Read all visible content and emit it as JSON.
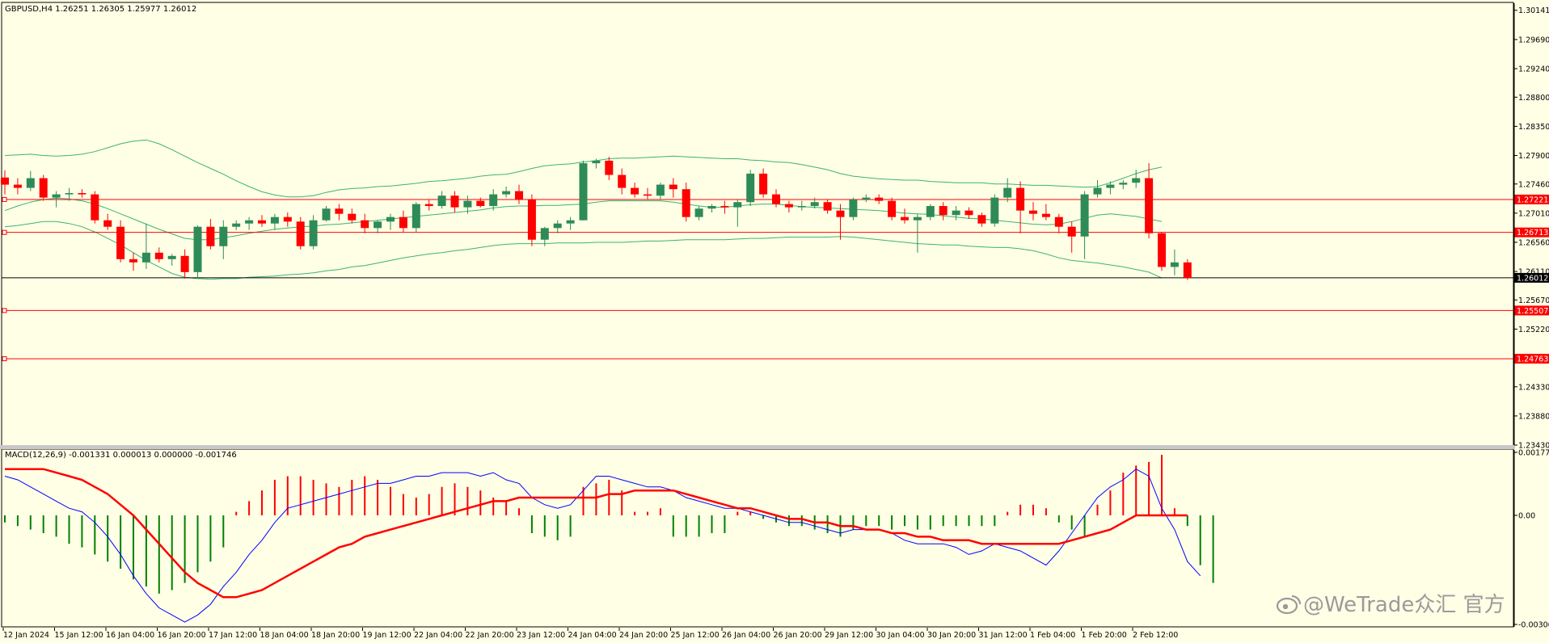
{
  "window": {
    "header": "GBPUSD,H4  1.26251 1.26305 1.25977 1.26012",
    "macd_header": "MACD(12,26,9) -0.001331 0.000013 0.000000 -0.001746",
    "watermark": "@WeTrade众汇 官方"
  },
  "price_axis": {
    "labels": [
      "1.30141",
      "1.29690",
      "1.29240",
      "1.28800",
      "1.28350",
      "1.27900",
      "1.27460",
      "1.27010",
      "1.26560",
      "1.26110",
      "1.25670",
      "1.25220",
      "1.24330",
      "1.23880",
      "1.23430"
    ],
    "values": [
      1.30141,
      1.2969,
      1.2924,
      1.288,
      1.2835,
      1.279,
      1.2746,
      1.2701,
      1.2656,
      1.2611,
      1.2567,
      1.2522,
      1.2433,
      1.2388,
      1.2343
    ],
    "range": [
      1.2343,
      1.3025
    ]
  },
  "levels": [
    {
      "label": "1.27221",
      "value": 1.27221,
      "color": "#ff0000"
    },
    {
      "label": "1.26713",
      "value": 1.26713,
      "color": "#ff0000"
    },
    {
      "label": "1.25507",
      "value": 1.25507,
      "color": "#ff0000"
    },
    {
      "label": "1.24763",
      "value": 1.24763,
      "color": "#ff0000"
    },
    {
      "label": "1.26012",
      "value": 1.26012,
      "color": "#000000",
      "current": true
    }
  ],
  "time_axis": [
    "12 Jan 2024",
    "15 Jan 12:00",
    "16 Jan 04:00",
    "16 Jan 20:00",
    "17 Jan 12:00",
    "18 Jan 04:00",
    "18 Jan 20:00",
    "19 Jan 12:00",
    "22 Jan 04:00",
    "22 Jan 20:00",
    "23 Jan 12:00",
    "24 Jan 04:00",
    "24 Jan 20:00",
    "25 Jan 12:00",
    "26 Jan 04:00",
    "26 Jan 20:00",
    "29 Jan 12:00",
    "30 Jan 04:00",
    "30 Jan 20:00",
    "31 Jan 12:00",
    "1 Feb 04:00",
    "1 Feb 20:00",
    "2 Feb 12:00"
  ],
  "macd_axis": {
    "labels": [
      "0.001771",
      "0.00",
      "-0.003066"
    ],
    "values": [
      0.001771,
      0.0,
      -0.003066
    ]
  },
  "colors": {
    "background": "#ffffe6",
    "bull": "#2e8b57",
    "bear": "#ff0000",
    "bands": "#3cb371",
    "macd_main": "#0000ff",
    "macd_signal": "#ff0000",
    "hist_pos": "#ff0000",
    "hist_neg": "#008000"
  },
  "chart_data": {
    "type": "candlestick",
    "symbol": "GBPUSD",
    "timeframe": "H4",
    "ohlc": [
      [
        1.2756,
        1.2767,
        1.273,
        1.2745
      ],
      [
        1.2745,
        1.2755,
        1.273,
        1.274
      ],
      [
        1.274,
        1.2766,
        1.2735,
        1.2755
      ],
      [
        1.2755,
        1.276,
        1.272,
        1.2725
      ],
      [
        1.2725,
        1.2735,
        1.271,
        1.273
      ],
      [
        1.273,
        1.274,
        1.272,
        1.2732
      ],
      [
        1.2732,
        1.2738,
        1.2725,
        1.273
      ],
      [
        1.273,
        1.2735,
        1.2685,
        1.269
      ],
      [
        1.269,
        1.27,
        1.2675,
        1.268
      ],
      [
        1.268,
        1.269,
        1.2625,
        1.263
      ],
      [
        1.263,
        1.264,
        1.2612,
        1.2625
      ],
      [
        1.2625,
        1.2685,
        1.2615,
        1.264
      ],
      [
        1.264,
        1.2648,
        1.2625,
        1.263
      ],
      [
        1.263,
        1.2638,
        1.262,
        1.2635
      ],
      [
        1.2635,
        1.2645,
        1.26,
        1.261
      ],
      [
        1.261,
        1.2682,
        1.26,
        1.268
      ],
      [
        1.268,
        1.2692,
        1.2645,
        1.265
      ],
      [
        1.265,
        1.269,
        1.263,
        1.268
      ],
      [
        1.268,
        1.269,
        1.2675,
        1.2685
      ],
      [
        1.2685,
        1.2695,
        1.2675,
        1.269
      ],
      [
        1.269,
        1.2698,
        1.268,
        1.2685
      ],
      [
        1.2685,
        1.27,
        1.2675,
        1.2695
      ],
      [
        1.2695,
        1.2702,
        1.268,
        1.2688
      ],
      [
        1.2688,
        1.2695,
        1.2645,
        1.265
      ],
      [
        1.265,
        1.2698,
        1.2645,
        1.269
      ],
      [
        1.269,
        1.2712,
        1.2688,
        1.2708
      ],
      [
        1.2708,
        1.2715,
        1.269,
        1.27
      ],
      [
        1.27,
        1.2708,
        1.2685,
        1.269
      ],
      [
        1.269,
        1.27,
        1.267,
        1.2678
      ],
      [
        1.2678,
        1.269,
        1.267,
        1.2688
      ],
      [
        1.2688,
        1.27,
        1.2675,
        1.2695
      ],
      [
        1.2695,
        1.2705,
        1.2672,
        1.2678
      ],
      [
        1.2678,
        1.2718,
        1.2672,
        1.2715
      ],
      [
        1.2715,
        1.2722,
        1.2705,
        1.2712
      ],
      [
        1.2712,
        1.2735,
        1.2708,
        1.2728
      ],
      [
        1.2728,
        1.2735,
        1.2702,
        1.271
      ],
      [
        1.271,
        1.2728,
        1.27,
        1.272
      ],
      [
        1.272,
        1.2725,
        1.271,
        1.2712
      ],
      [
        1.2712,
        1.2738,
        1.2705,
        1.273
      ],
      [
        1.273,
        1.2742,
        1.2725,
        1.2735
      ],
      [
        1.2735,
        1.2745,
        1.2715,
        1.2722
      ],
      [
        1.2722,
        1.273,
        1.265,
        1.266
      ],
      [
        1.266,
        1.268,
        1.265,
        1.2678
      ],
      [
        1.2678,
        1.269,
        1.267,
        1.2685
      ],
      [
        1.2685,
        1.2695,
        1.2675,
        1.269
      ],
      [
        1.269,
        1.2782,
        1.269,
        1.2778
      ],
      [
        1.2778,
        1.2785,
        1.277,
        1.2782
      ],
      [
        1.2782,
        1.2788,
        1.2752,
        1.276
      ],
      [
        1.276,
        1.277,
        1.273,
        1.274
      ],
      [
        1.274,
        1.2748,
        1.2725,
        1.273
      ],
      [
        1.273,
        1.274,
        1.2722,
        1.2728
      ],
      [
        1.2728,
        1.2748,
        1.2722,
        1.2745
      ],
      [
        1.2745,
        1.2755,
        1.2725,
        1.2738
      ],
      [
        1.2738,
        1.2748,
        1.2688,
        1.2695
      ],
      [
        1.2695,
        1.2712,
        1.269,
        1.2708
      ],
      [
        1.2708,
        1.2715,
        1.2702,
        1.2712
      ],
      [
        1.2712,
        1.272,
        1.27,
        1.271
      ],
      [
        1.271,
        1.2722,
        1.268,
        1.2718
      ],
      [
        1.2718,
        1.2768,
        1.2712,
        1.2762
      ],
      [
        1.2762,
        1.277,
        1.2725,
        1.273
      ],
      [
        1.273,
        1.2738,
        1.271,
        1.2715
      ],
      [
        1.2715,
        1.272,
        1.2702,
        1.271
      ],
      [
        1.271,
        1.272,
        1.2705,
        1.2712
      ],
      [
        1.2712,
        1.2725,
        1.2708,
        1.2718
      ],
      [
        1.2718,
        1.2722,
        1.27,
        1.2705
      ],
      [
        1.2705,
        1.2715,
        1.266,
        1.2695
      ],
      [
        1.2695,
        1.2725,
        1.269,
        1.2722
      ],
      [
        1.2722,
        1.273,
        1.2718,
        1.2725
      ],
      [
        1.2725,
        1.273,
        1.2715,
        1.272
      ],
      [
        1.272,
        1.2725,
        1.269,
        1.2695
      ],
      [
        1.2695,
        1.2708,
        1.2685,
        1.269
      ],
      [
        1.269,
        1.27,
        1.264,
        1.2695
      ],
      [
        1.2695,
        1.2715,
        1.269,
        1.2712
      ],
      [
        1.2712,
        1.2718,
        1.269,
        1.2698
      ],
      [
        1.2698,
        1.2712,
        1.269,
        1.2705
      ],
      [
        1.2705,
        1.271,
        1.2692,
        1.2698
      ],
      [
        1.2698,
        1.2702,
        1.268,
        1.2685
      ],
      [
        1.2685,
        1.273,
        1.268,
        1.2725
      ],
      [
        1.2725,
        1.2755,
        1.2718,
        1.274
      ],
      [
        1.274,
        1.275,
        1.267,
        1.2705
      ],
      [
        1.2705,
        1.2718,
        1.269,
        1.27
      ],
      [
        1.27,
        1.2715,
        1.269,
        1.2695
      ],
      [
        1.2695,
        1.27,
        1.267,
        1.268
      ],
      [
        1.268,
        1.2688,
        1.264,
        1.2665
      ],
      [
        1.2665,
        1.2735,
        1.263,
        1.273
      ],
      [
        1.273,
        1.2752,
        1.2725,
        1.274
      ],
      [
        1.274,
        1.275,
        1.273,
        1.2745
      ],
      [
        1.2745,
        1.2752,
        1.2738,
        1.2748
      ],
      [
        1.2748,
        1.2768,
        1.274,
        1.2755
      ],
      [
        1.2755,
        1.2778,
        1.2662,
        1.267
      ],
      [
        1.267,
        1.2672,
        1.2612,
        1.2618
      ],
      [
        1.2618,
        1.2645,
        1.2605,
        1.2625
      ],
      [
        1.2625,
        1.263,
        1.2598,
        1.2601
      ]
    ],
    "bollinger": {
      "upper": [
        1.279,
        1.2791,
        1.2792,
        1.279,
        1.2789,
        1.279,
        1.2792,
        1.2796,
        1.2802,
        1.2808,
        1.2812,
        1.2814,
        1.2808,
        1.2799,
        1.2789,
        1.2779,
        1.277,
        1.2761,
        1.2751,
        1.2742,
        1.2734,
        1.2729,
        1.2726,
        1.2726,
        1.2728,
        1.2733,
        1.2737,
        1.2739,
        1.274,
        1.2742,
        1.2743,
        1.2745,
        1.2747,
        1.275,
        1.2751,
        1.2753,
        1.2755,
        1.2758,
        1.276,
        1.2761,
        1.2765,
        1.277,
        1.2774,
        1.2776,
        1.2777,
        1.278,
        1.2782,
        1.2785,
        1.2786,
        1.2786,
        1.2787,
        1.2788,
        1.2789,
        1.2788,
        1.2787,
        1.2786,
        1.2785,
        1.2785,
        1.2783,
        1.2782,
        1.278,
        1.2779,
        1.2776,
        1.2772,
        1.2768,
        1.2762,
        1.2758,
        1.2756,
        1.2754,
        1.2753,
        1.2752,
        1.2752,
        1.275,
        1.2749,
        1.2748,
        1.2748,
        1.2748,
        1.2746,
        1.2746,
        1.2745,
        1.2744,
        1.2744,
        1.2743,
        1.2742,
        1.2741,
        1.2742,
        1.2748,
        1.2755,
        1.2762,
        1.2768,
        1.2772
      ],
      "middle": [
        1.2705,
        1.2712,
        1.2718,
        1.2722,
        1.2724,
        1.2723,
        1.272,
        1.2715,
        1.2708,
        1.27,
        1.2692,
        1.2684,
        1.2676,
        1.2669,
        1.2662,
        1.266,
        1.266,
        1.2663,
        1.2666,
        1.267,
        1.2673,
        1.2676,
        1.2678,
        1.268,
        1.2681,
        1.2683,
        1.2684,
        1.2686,
        1.2688,
        1.269,
        1.2692,
        1.2694,
        1.2696,
        1.2698,
        1.27,
        1.2702,
        1.2704,
        1.2706,
        1.2709,
        1.2711,
        1.2712,
        1.2712,
        1.2713,
        1.2713,
        1.2714,
        1.2715,
        1.2718,
        1.272,
        1.272,
        1.272,
        1.272,
        1.272,
        1.2718,
        1.2715,
        1.2712,
        1.271,
        1.271,
        1.2712,
        1.2714,
        1.2715,
        1.2715,
        1.2713,
        1.2711,
        1.271,
        1.2709,
        1.2708,
        1.2707,
        1.2706,
        1.2705,
        1.2703,
        1.2701,
        1.27,
        1.2699,
        1.2697,
        1.2695,
        1.2693,
        1.2692,
        1.269,
        1.2688,
        1.2686,
        1.2684,
        1.2683,
        1.2684,
        1.2688,
        1.2693,
        1.2698,
        1.27,
        1.2698,
        1.2696,
        1.2692,
        1.2688
      ],
      "lower": [
        1.268,
        1.2682,
        1.2685,
        1.2688,
        1.2688,
        1.2685,
        1.268,
        1.2672,
        1.2662,
        1.2652,
        1.264,
        1.2628,
        1.2618,
        1.2608,
        1.2602,
        1.26,
        1.2599,
        1.26,
        1.26,
        1.2602,
        1.2603,
        1.2604,
        1.2606,
        1.2607,
        1.2609,
        1.2612,
        1.2614,
        1.2618,
        1.262,
        1.2624,
        1.2628,
        1.2632,
        1.2635,
        1.2638,
        1.264,
        1.2643,
        1.2645,
        1.2648,
        1.2651,
        1.2653,
        1.2654,
        1.2654,
        1.2654,
        1.2655,
        1.2655,
        1.2655,
        1.2656,
        1.2656,
        1.2656,
        1.2657,
        1.2658,
        1.2658,
        1.2659,
        1.266,
        1.266,
        1.266,
        1.266,
        1.2661,
        1.2662,
        1.2662,
        1.2663,
        1.2664,
        1.2664,
        1.2664,
        1.2664,
        1.2665,
        1.2664,
        1.2662,
        1.266,
        1.2658,
        1.2656,
        1.2654,
        1.2653,
        1.2652,
        1.2652,
        1.265,
        1.2649,
        1.2648,
        1.2648,
        1.2646,
        1.2643,
        1.2638,
        1.2632,
        1.2628,
        1.2626,
        1.2624,
        1.2621,
        1.2618,
        1.2614,
        1.261,
        1.2601
      ]
    },
    "macd": {
      "range": [
        -0.003066,
        0.001771
      ],
      "histogram": [
        -0.0002,
        -0.0003,
        -0.0004,
        -0.0005,
        -0.0006,
        -0.0008,
        -0.0009,
        -0.0011,
        -0.0013,
        -0.0015,
        -0.0018,
        -0.002,
        -0.0022,
        -0.0021,
        -0.0019,
        -0.0016,
        -0.0013,
        -0.0009,
        0.0001,
        0.0004,
        0.0007,
        0.001,
        0.0011,
        0.0011,
        0.001,
        0.0009,
        0.0008,
        0.001,
        0.0011,
        0.001,
        0.0008,
        0.0006,
        0.0005,
        0.0006,
        0.0008,
        0.0009,
        0.0008,
        0.0007,
        0.0005,
        0.0004,
        0.0002,
        -0.0005,
        -0.0006,
        -0.0007,
        -0.0006,
        0.0008,
        0.0009,
        0.001,
        0.0007,
        0.0001,
        0.0001,
        0.0002,
        -0.0006,
        -0.0006,
        -0.0006,
        -0.0005,
        -0.0005,
        0.0001,
        0.0001,
        -0.0001,
        -0.0002,
        -0.0003,
        -0.0003,
        -0.0004,
        -0.0005,
        -0.0006,
        -0.0004,
        -0.0003,
        -0.0003,
        -0.0004,
        -0.0003,
        -0.0004,
        -0.0004,
        -0.0003,
        -0.0003,
        -0.0003,
        -0.0003,
        -0.0003,
        0.0001,
        0.0003,
        0.0003,
        0.0002,
        -0.0002,
        -0.0004,
        -0.0006,
        0.0003,
        0.0007,
        0.0012,
        0.0014,
        0.0015,
        0.0017,
        0.0002,
        -0.0003,
        -0.0014,
        -0.0019
      ],
      "main": [
        0.0011,
        0.001,
        0.0008,
        0.0006,
        0.0004,
        0.0002,
        0.0001,
        -0.0002,
        -0.0006,
        -0.0011,
        -0.0017,
        -0.0022,
        -0.0026,
        -0.0028,
        -0.003,
        -0.0028,
        -0.0025,
        -0.002,
        -0.0016,
        -0.0011,
        -0.0007,
        -0.0002,
        0.0002,
        0.0003,
        0.0004,
        0.0005,
        0.0006,
        0.0007,
        0.0008,
        0.0009,
        0.0009,
        0.001,
        0.0011,
        0.0011,
        0.0012,
        0.0012,
        0.0012,
        0.0011,
        0.0012,
        0.001,
        0.0009,
        0.0005,
        0.0003,
        0.0002,
        0.0003,
        0.0007,
        0.0011,
        0.0011,
        0.001,
        0.0009,
        0.0008,
        0.0008,
        0.0007,
        0.0005,
        0.0004,
        0.0003,
        0.0002,
        0.0002,
        0.0001,
        0.0,
        -0.0001,
        -0.0002,
        -0.0002,
        -0.0003,
        -0.0004,
        -0.0005,
        -0.0004,
        -0.0004,
        -0.0004,
        -0.0005,
        -0.0007,
        -0.0008,
        -0.0008,
        -0.0008,
        -0.0009,
        -0.0011,
        -0.001,
        -0.0008,
        -0.0009,
        -0.001,
        -0.0012,
        -0.0014,
        -0.001,
        -0.0005,
        0.0,
        0.0005,
        0.0008,
        0.001,
        0.0013,
        0.0011,
        0.0002,
        -0.0004,
        -0.0013,
        -0.0017
      ],
      "signal": [
        0.0013,
        0.0013,
        0.0013,
        0.0013,
        0.0012,
        0.0011,
        0.001,
        0.0008,
        0.0006,
        0.0003,
        0.0,
        -0.0004,
        -0.0008,
        -0.0012,
        -0.0016,
        -0.0019,
        -0.0021,
        -0.0023,
        -0.0023,
        -0.0022,
        -0.0021,
        -0.0019,
        -0.0017,
        -0.0015,
        -0.0013,
        -0.0011,
        -0.0009,
        -0.0008,
        -0.0006,
        -0.0005,
        -0.0004,
        -0.0003,
        -0.0002,
        -0.0001,
        0.0,
        0.0001,
        0.0002,
        0.0003,
        0.0004,
        0.0004,
        0.0005,
        0.0005,
        0.0005,
        0.0005,
        0.0005,
        0.0005,
        0.0005,
        0.0006,
        0.0006,
        0.0007,
        0.0007,
        0.0007,
        0.0007,
        0.0006,
        0.0005,
        0.0004,
        0.0003,
        0.0002,
        0.0002,
        0.0001,
        0.0,
        -0.0001,
        -0.0001,
        -0.0002,
        -0.0002,
        -0.0003,
        -0.0003,
        -0.0004,
        -0.0004,
        -0.0005,
        -0.0005,
        -0.0006,
        -0.0006,
        -0.0007,
        -0.0007,
        -0.0007,
        -0.0008,
        -0.0008,
        -0.0008,
        -0.0008,
        -0.0008,
        -0.0008,
        -0.0008,
        -0.0007,
        -0.0006,
        -0.0005,
        -0.0004,
        -0.0002,
        0.0,
        0.0,
        0.0,
        0.0,
        0.0
      ]
    }
  }
}
